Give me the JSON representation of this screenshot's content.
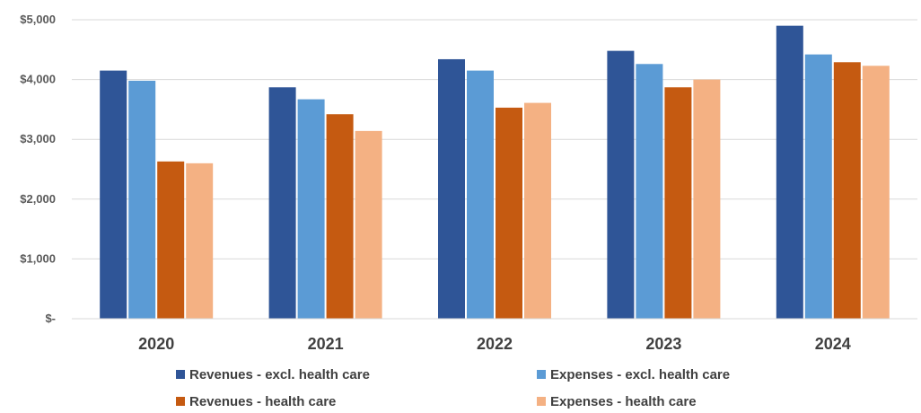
{
  "chart_data": {
    "type": "bar",
    "categories": [
      "2020",
      "2021",
      "2022",
      "2023",
      "2024"
    ],
    "series": [
      {
        "name": "Revenues - excl. health care",
        "color": "#2F5597",
        "values": [
          4150,
          3870,
          4340,
          4480,
          4900
        ]
      },
      {
        "name": "Expenses - excl. health care",
        "color": "#5B9BD5",
        "values": [
          3980,
          3670,
          4150,
          4260,
          4420
        ]
      },
      {
        "name": "Revenues - health care",
        "color": "#C55A11",
        "values": [
          2630,
          3420,
          3530,
          3870,
          4290
        ]
      },
      {
        "name": "Expenses - health care",
        "color": "#F4B183",
        "values": [
          2600,
          3140,
          3610,
          4000,
          4230
        ]
      }
    ],
    "ylim": [
      0,
      5000
    ],
    "yticks": [
      0,
      1000,
      2000,
      3000,
      4000,
      5000
    ],
    "ytick_labels": [
      "$-",
      "$1,000",
      "$2,000",
      "$3,000",
      "$4,000",
      "$5,000"
    ],
    "grid": true,
    "legend_position": "bottom"
  }
}
